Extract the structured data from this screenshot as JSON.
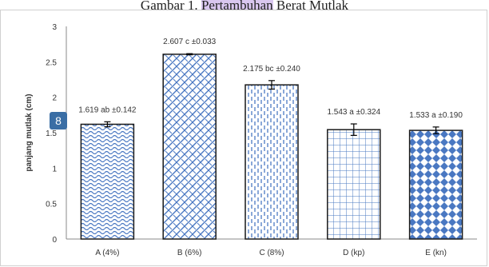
{
  "caption": {
    "prefix": "Gambar 1. ",
    "highlight_a": "Pertambuhan",
    "suffix": " Berat Mutlak"
  },
  "badge": "8",
  "colors": {
    "bar_pattern": "#4a78c2",
    "bar_outline": "#1a1a1a",
    "axis": "#888888",
    "text": "#333333"
  },
  "chart_data": {
    "type": "bar",
    "ylabel": "panjang mutlak (cm)",
    "ylim": [
      0,
      3
    ],
    "yticks": [
      "0",
      "0.5",
      "1",
      "1.5",
      "2",
      "2.5",
      "3"
    ],
    "categories": [
      "A (4%)",
      "B (6%)",
      "C (8%)",
      "D (kp)",
      "E (kn)"
    ],
    "values": [
      1.619,
      2.607,
      2.175,
      1.543,
      1.533
    ],
    "errors": [
      0.142,
      0.033,
      0.24,
      0.324,
      0.19
    ],
    "data_labels": [
      "1.619 ab  ±0.142",
      "2.607 c ±0.033",
      "2.175  bc ±0.240",
      "1.543 a ±0.324",
      "1.533 a ±0.190"
    ],
    "patterns": [
      "wave",
      "weave",
      "dash",
      "grid",
      "diamond"
    ],
    "grid": false
  }
}
